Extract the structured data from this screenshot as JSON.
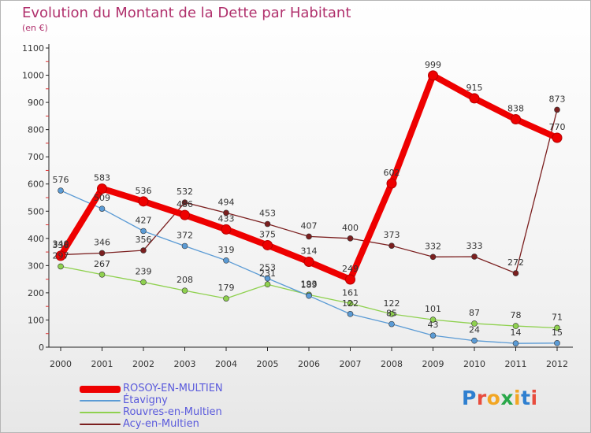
{
  "title": "Evolution du Montant de la Dette par Habitant",
  "subtitle": "(en €)",
  "logo": {
    "text": "Proxiti",
    "letter_colors": [
      "#2e7fd0",
      "#e84c3d",
      "#f2a623",
      "#2aa84a",
      "#f2a623",
      "#2e7fd0",
      "#e84c3d"
    ]
  },
  "chart_data": {
    "type": "line",
    "x": [
      "2000",
      "2001",
      "2002",
      "2003",
      "2004",
      "2005",
      "2006",
      "2007",
      "2008",
      "2009",
      "2010",
      "2011",
      "2012"
    ],
    "yticks": [
      "0",
      "100",
      "200",
      "300",
      "400",
      "500",
      "600",
      "700",
      "800",
      "900",
      "1000",
      "1100"
    ],
    "ylim": [
      0,
      1100
    ],
    "grid": false,
    "legend_position": "bottom-left",
    "series": [
      {
        "name": "ROSOY-EN-MULTIEN",
        "color": "#ee0000",
        "values": [
          336,
          583,
          536,
          486,
          433,
          375,
          314,
          249,
          602,
          999,
          915,
          838,
          770
        ],
        "labels": [
          "336",
          "583",
          "536",
          "486",
          "433",
          "375",
          "314",
          "249",
          "602",
          "999",
          "915",
          "838",
          "770"
        ]
      },
      {
        "name": "Étavigny",
        "color": "#5b9bd5",
        "values": [
          576,
          509,
          427,
          372,
          319,
          253,
          189,
          122,
          85,
          43,
          24,
          14,
          15
        ],
        "labels": [
          "576",
          "509",
          "427",
          "372",
          "319",
          "253",
          "189",
          "122",
          "85",
          "43",
          "24",
          "14",
          "15"
        ]
      },
      {
        "name": "Rouvres-en-Multien",
        "color": "#8fd14f",
        "values": [
          297,
          267,
          239,
          208,
          179,
          231,
          193,
          161,
          122,
          101,
          87,
          78,
          71
        ],
        "labels": [
          "297",
          "267",
          "239",
          "208",
          "179",
          "231",
          "193",
          "161",
          "122",
          "101",
          "87",
          "78",
          "71"
        ]
      },
      {
        "name": "Acy-en-Multien",
        "color": "#7b1f1f",
        "values": [
          340,
          346,
          356,
          532,
          494,
          453,
          407,
          400,
          373,
          332,
          333,
          272,
          873
        ],
        "labels": [
          "340",
          "346",
          "356",
          "532",
          "494",
          "453",
          "407",
          "400",
          "373",
          "332",
          "333",
          "272",
          "873"
        ]
      }
    ]
  }
}
